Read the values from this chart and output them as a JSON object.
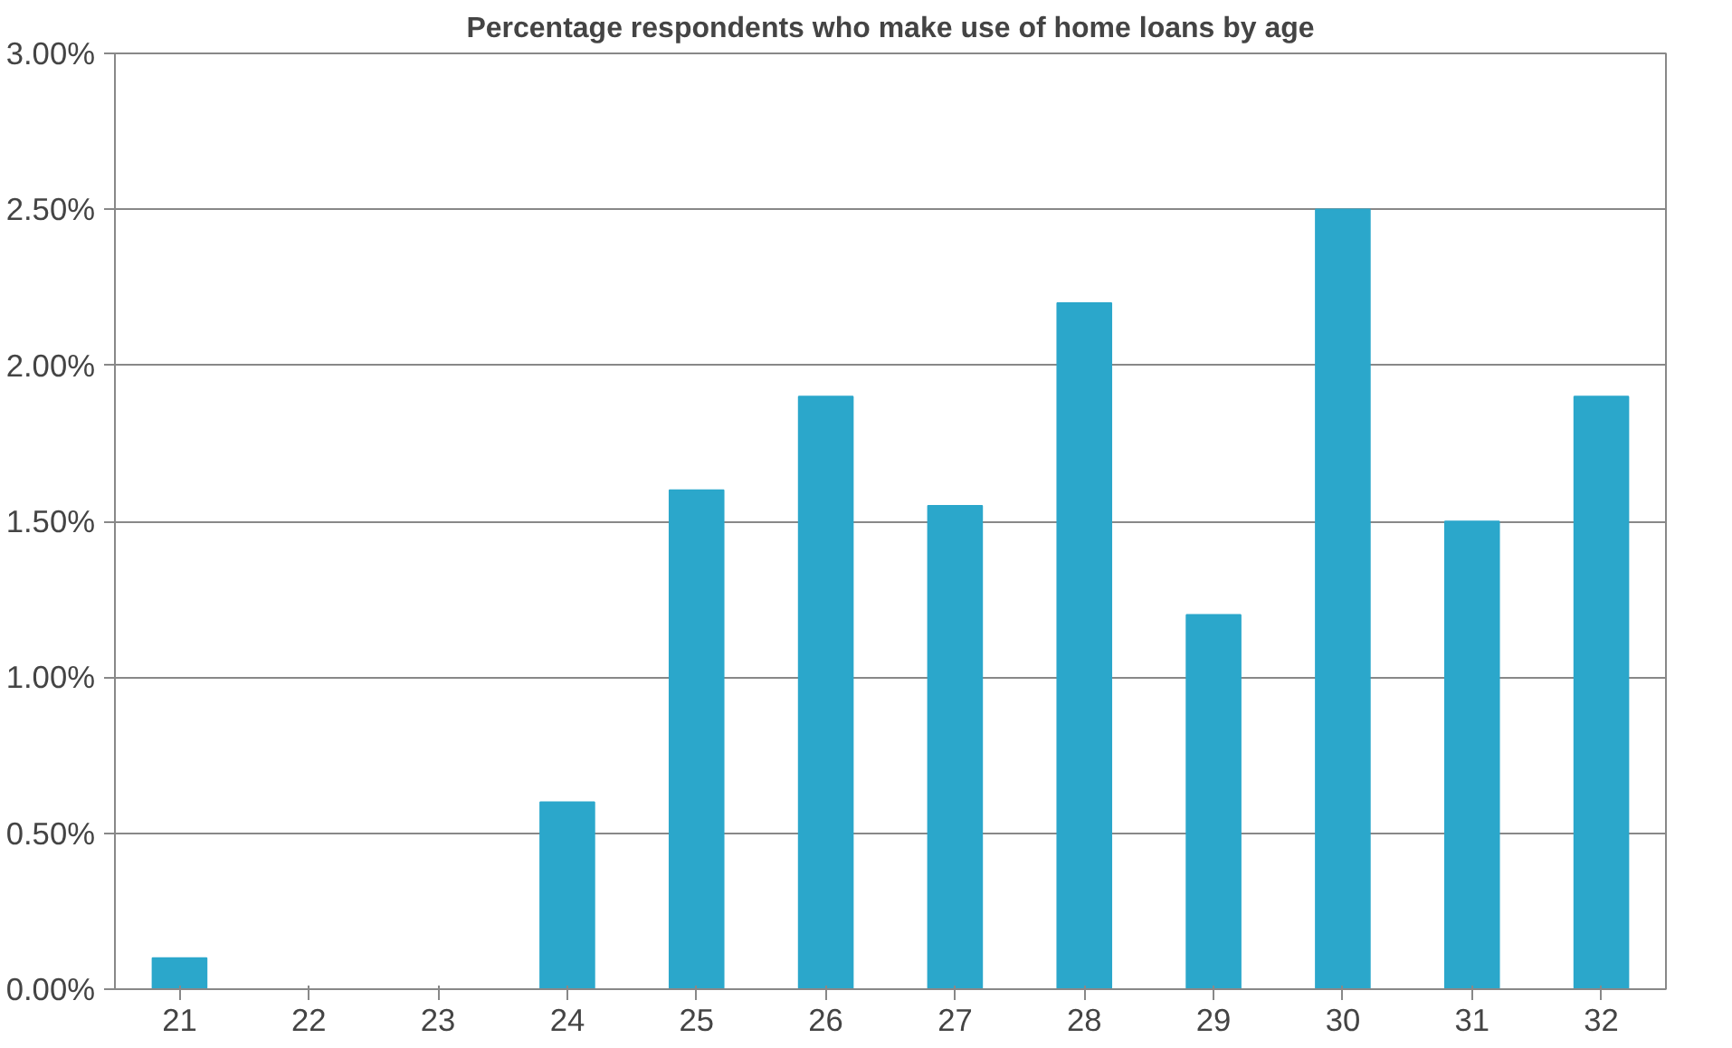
{
  "chart_data": {
    "type": "bar",
    "title": "Percentage respondents who make use of home loans by age",
    "categories": [
      "21",
      "22",
      "23",
      "24",
      "25",
      "26",
      "27",
      "28",
      "29",
      "30",
      "31",
      "32"
    ],
    "values": [
      0.1,
      0,
      0,
      0.6,
      1.6,
      1.9,
      1.55,
      2.2,
      1.2,
      2.5,
      1.5,
      1.9
    ],
    "color": "#2ba7cb",
    "ylim": [
      0,
      3
    ],
    "yticks": [
      {
        "value": 0,
        "label": "0.00%"
      },
      {
        "value": 0.5,
        "label": "0.50%"
      },
      {
        "value": 1,
        "label": "1.00%"
      },
      {
        "value": 1.5,
        "label": "1.50%"
      },
      {
        "value": 2,
        "label": "2.00%"
      },
      {
        "value": 2.5,
        "label": "2.50%"
      },
      {
        "value": 3,
        "label": "3.00%"
      }
    ],
    "grid": "y"
  }
}
